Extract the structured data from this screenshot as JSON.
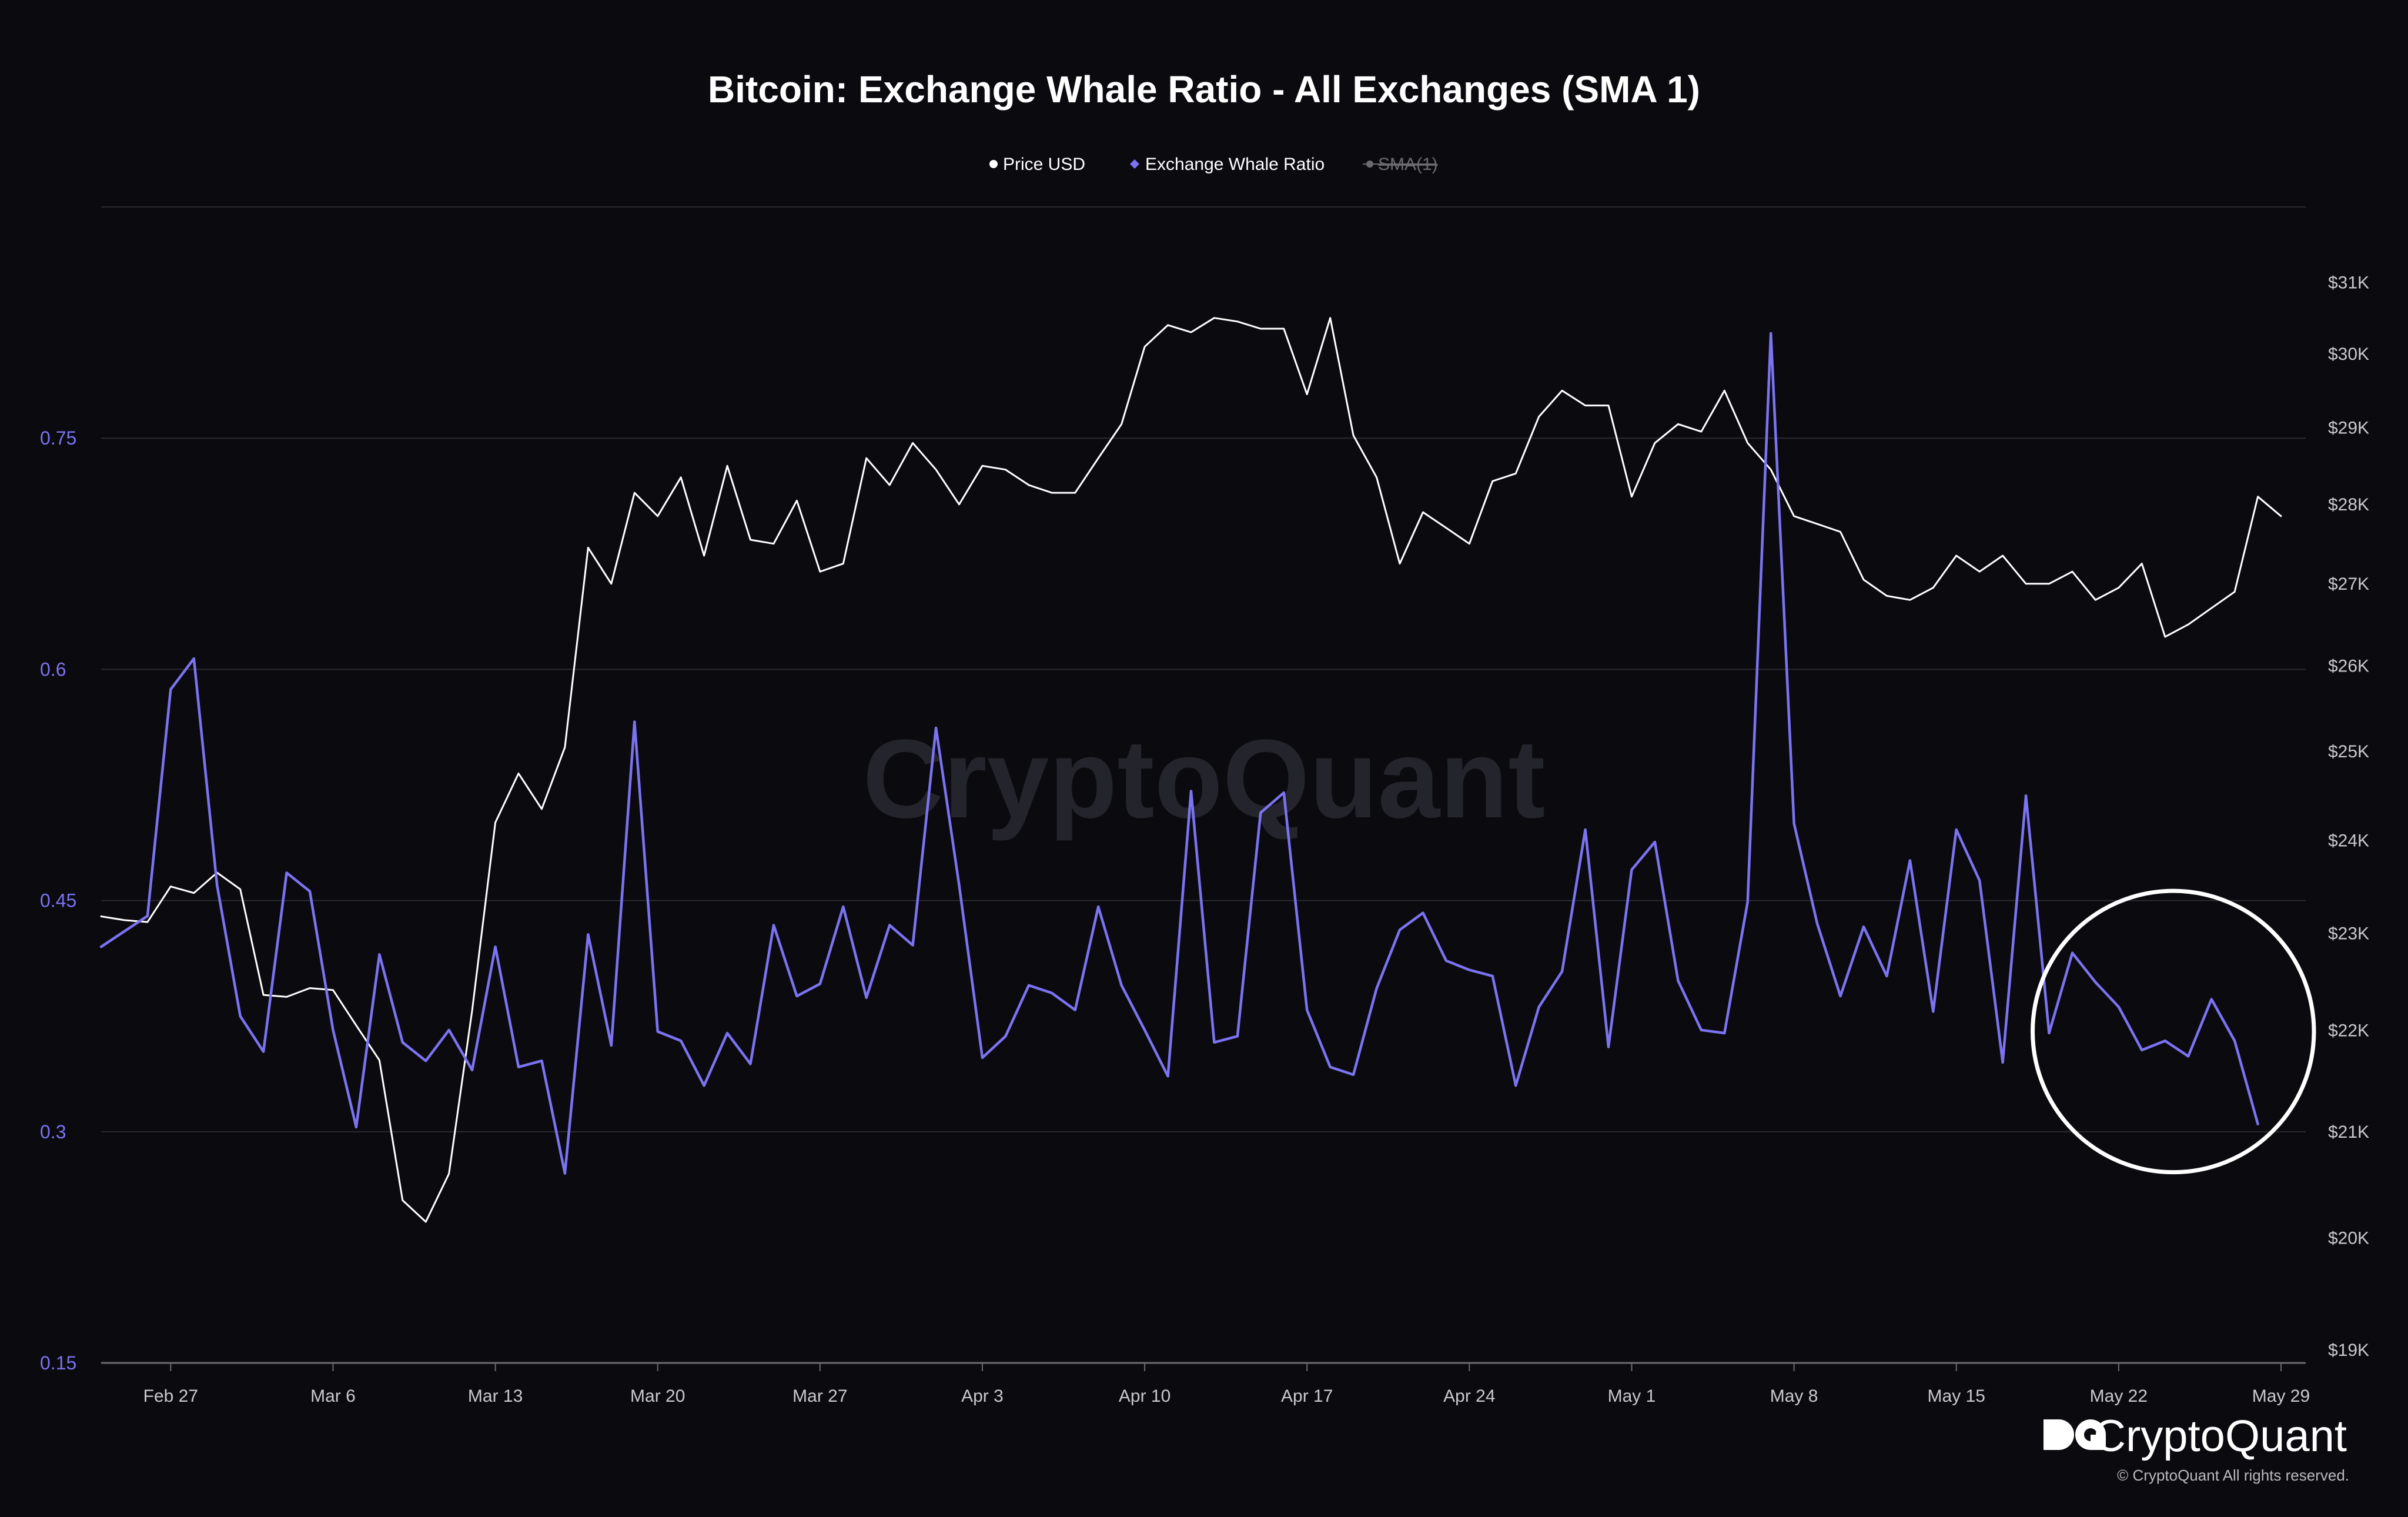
{
  "chart_data": {
    "type": "line",
    "title": "Bitcoin: Exchange Whale Ratio - All Exchanges (SMA 1)",
    "legend": [
      {
        "label": "Price USD",
        "color": "#ffffff",
        "enabled": true
      },
      {
        "label": "Exchange Whale Ratio",
        "color": "#7b73f0",
        "enabled": true
      },
      {
        "label": "SMA(1)",
        "color": "#6a6a70",
        "enabled": false
      }
    ],
    "legend_position": "top-center",
    "x_start": "2023-02-24",
    "x_end": "2023-05-29",
    "x_ticks": [
      {
        "label": "Feb 27",
        "date": "2023-02-27"
      },
      {
        "label": "Mar 6",
        "date": "2023-03-06"
      },
      {
        "label": "Mar 13",
        "date": "2023-03-13"
      },
      {
        "label": "Mar 20",
        "date": "2023-03-20"
      },
      {
        "label": "Mar 27",
        "date": "2023-03-27"
      },
      {
        "label": "Apr 3",
        "date": "2023-04-03"
      },
      {
        "label": "Apr 10",
        "date": "2023-04-10"
      },
      {
        "label": "Apr 17",
        "date": "2023-04-17"
      },
      {
        "label": "Apr 24",
        "date": "2023-04-24"
      },
      {
        "label": "May 1",
        "date": "2023-05-01"
      },
      {
        "label": "May 8",
        "date": "2023-05-08"
      },
      {
        "label": "May 15",
        "date": "2023-05-15"
      },
      {
        "label": "May 22",
        "date": "2023-05-22"
      },
      {
        "label": "May 29",
        "date": "2023-05-29"
      }
    ],
    "y_left": {
      "ylim": [
        0.15,
        0.9
      ],
      "ticks": [
        "0.15",
        "0.3",
        "0.45",
        "0.6",
        "0.75"
      ],
      "color": "#7b73f0"
    },
    "y_right": {
      "scale": "log",
      "ticks": [
        "$19K",
        "$20K",
        "$21K",
        "$22K",
        "$23K",
        "$24K",
        "$25K",
        "$26K",
        "$27K",
        "$28K",
        "$29K",
        "$30K",
        "$31K"
      ]
    },
    "grid": true,
    "series": [
      {
        "name": "Price USD",
        "axis": "right",
        "color": "#ffffff",
        "dates": [
          "2023-02-24",
          "2023-02-25",
          "2023-02-26",
          "2023-02-27",
          "2023-02-28",
          "2023-03-01",
          "2023-03-02",
          "2023-03-03",
          "2023-03-04",
          "2023-03-05",
          "2023-03-06",
          "2023-03-07",
          "2023-03-08",
          "2023-03-09",
          "2023-03-10",
          "2023-03-11",
          "2023-03-12",
          "2023-03-13",
          "2023-03-14",
          "2023-03-15",
          "2023-03-16",
          "2023-03-17",
          "2023-03-18",
          "2023-03-19",
          "2023-03-20",
          "2023-03-21",
          "2023-03-22",
          "2023-03-23",
          "2023-03-24",
          "2023-03-25",
          "2023-03-26",
          "2023-03-27",
          "2023-03-28",
          "2023-03-29",
          "2023-03-30",
          "2023-03-31",
          "2023-04-01",
          "2023-04-02",
          "2023-04-03",
          "2023-04-04",
          "2023-04-05",
          "2023-04-06",
          "2023-04-07",
          "2023-04-08",
          "2023-04-09",
          "2023-04-10",
          "2023-04-11",
          "2023-04-12",
          "2023-04-13",
          "2023-04-14",
          "2023-04-15",
          "2023-04-16",
          "2023-04-17",
          "2023-04-18",
          "2023-04-19",
          "2023-04-20",
          "2023-04-21",
          "2023-04-22",
          "2023-04-23",
          "2023-04-24",
          "2023-04-25",
          "2023-04-26",
          "2023-04-27",
          "2023-04-28",
          "2023-04-29",
          "2023-04-30",
          "2023-05-01",
          "2023-05-02",
          "2023-05-03",
          "2023-05-04",
          "2023-05-05",
          "2023-05-06",
          "2023-05-07",
          "2023-05-08",
          "2023-05-09",
          "2023-05-10",
          "2023-05-11",
          "2023-05-12",
          "2023-05-13",
          "2023-05-14",
          "2023-05-15",
          "2023-05-16",
          "2023-05-17",
          "2023-05-18",
          "2023-05-19",
          "2023-05-20",
          "2023-05-21",
          "2023-05-22",
          "2023-05-23",
          "2023-05-24",
          "2023-05-25",
          "2023-05-26",
          "2023-05-27",
          "2023-05-28",
          "2023-05-29"
        ],
        "values": [
          23180,
          23140,
          23120,
          23500,
          23430,
          23650,
          23470,
          22360,
          22340,
          22430,
          22410,
          22050,
          21700,
          20350,
          20150,
          20600,
          22200,
          24200,
          24750,
          24350,
          25050,
          27450,
          27000,
          28150,
          27850,
          28350,
          27350,
          28500,
          27550,
          27500,
          28050,
          27150,
          27250,
          28600,
          28250,
          28800,
          28450,
          28000,
          28500,
          28450,
          28250,
          28150,
          28150,
          28600,
          29050,
          30100,
          30400,
          30300,
          30500,
          30450,
          30350,
          30350,
          29450,
          30500,
          28900,
          28350,
          27250,
          27900,
          27700,
          27500,
          28300,
          28400,
          29150,
          29500,
          29300,
          29300,
          28100,
          28800,
          29050,
          28950,
          29500,
          28800,
          28450,
          27850,
          27750,
          27650,
          27050,
          26850,
          26800,
          26950,
          27350,
          27150,
          27350,
          27000,
          27000,
          27150,
          26800,
          26950,
          27250,
          26350,
          26500,
          26700,
          26900,
          28100,
          27850
        ]
      },
      {
        "name": "Exchange Whale Ratio",
        "axis": "left",
        "color": "#7b73f0",
        "dates": [
          "2023-02-24",
          "2023-02-25",
          "2023-02-26",
          "2023-02-27",
          "2023-02-28",
          "2023-03-01",
          "2023-03-02",
          "2023-03-03",
          "2023-03-04",
          "2023-03-05",
          "2023-03-06",
          "2023-03-07",
          "2023-03-08",
          "2023-03-09",
          "2023-03-10",
          "2023-03-11",
          "2023-03-12",
          "2023-03-13",
          "2023-03-14",
          "2023-03-15",
          "2023-03-16",
          "2023-03-17",
          "2023-03-18",
          "2023-03-19",
          "2023-03-20",
          "2023-03-21",
          "2023-03-22",
          "2023-03-23",
          "2023-03-24",
          "2023-03-25",
          "2023-03-26",
          "2023-03-27",
          "2023-03-28",
          "2023-03-29",
          "2023-03-30",
          "2023-03-31",
          "2023-04-01",
          "2023-04-02",
          "2023-04-03",
          "2023-04-04",
          "2023-04-05",
          "2023-04-06",
          "2023-04-07",
          "2023-04-08",
          "2023-04-09",
          "2023-04-10",
          "2023-04-11",
          "2023-04-12",
          "2023-04-13",
          "2023-04-14",
          "2023-04-15",
          "2023-04-16",
          "2023-04-17",
          "2023-04-18",
          "2023-04-19",
          "2023-04-20",
          "2023-04-21",
          "2023-04-22",
          "2023-04-23",
          "2023-04-24",
          "2023-04-25",
          "2023-04-26",
          "2023-04-27",
          "2023-04-28",
          "2023-04-29",
          "2023-04-30",
          "2023-05-01",
          "2023-05-02",
          "2023-05-03",
          "2023-05-04",
          "2023-05-05",
          "2023-05-06",
          "2023-05-07",
          "2023-05-08",
          "2023-05-09",
          "2023-05-10",
          "2023-05-11",
          "2023-05-12",
          "2023-05-13",
          "2023-05-14",
          "2023-05-15",
          "2023-05-16",
          "2023-05-17",
          "2023-05-18",
          "2023-05-19",
          "2023-05-20",
          "2023-05-21",
          "2023-05-22",
          "2023-05-23",
          "2023-05-24",
          "2023-05-25",
          "2023-05-26",
          "2023-05-27",
          "2023-05-28",
          "2023-05-29"
        ],
        "values": [
          0.42,
          0.43,
          0.44,
          0.587,
          0.607,
          0.46,
          0.375,
          0.352,
          0.468,
          0.456,
          0.366,
          0.303,
          0.415,
          0.358,
          0.346,
          0.366,
          0.34,
          0.42,
          0.342,
          0.346,
          0.273,
          0.428,
          0.356,
          0.566,
          0.365,
          0.359,
          0.33,
          0.364,
          0.344,
          0.434,
          0.388,
          0.396,
          0.446,
          0.387,
          0.434,
          0.421,
          0.562,
          0.46,
          0.348,
          0.362,
          0.395,
          0.39,
          0.379,
          0.446,
          0.395,
          0.366,
          0.336,
          0.521,
          0.358,
          0.362,
          0.507,
          0.52,
          0.379,
          0.342,
          0.337,
          0.393,
          0.431,
          0.442,
          0.411,
          0.405,
          0.401,
          0.33,
          0.381,
          0.404,
          0.496,
          0.355,
          0.47,
          0.488,
          0.398,
          0.366,
          0.364,
          0.449,
          0.818,
          0.5,
          0.435,
          0.388,
          0.433,
          0.401,
          0.476,
          0.378,
          0.496,
          0.463,
          0.345,
          0.518,
          0.364,
          0.416,
          0.397,
          0.381,
          0.353,
          0.359,
          0.349,
          0.386,
          0.359,
          0.305,
          null
        ]
      }
    ],
    "annotations": [
      {
        "type": "circle",
        "around_dates": [
          "2023-05-19",
          "2023-05-29"
        ],
        "color": "#ffffff"
      }
    ]
  },
  "watermark": "CryptoQuant",
  "brand": {
    "name": "CryptoQuant",
    "copyright": "© CryptoQuant All rights reserved."
  }
}
